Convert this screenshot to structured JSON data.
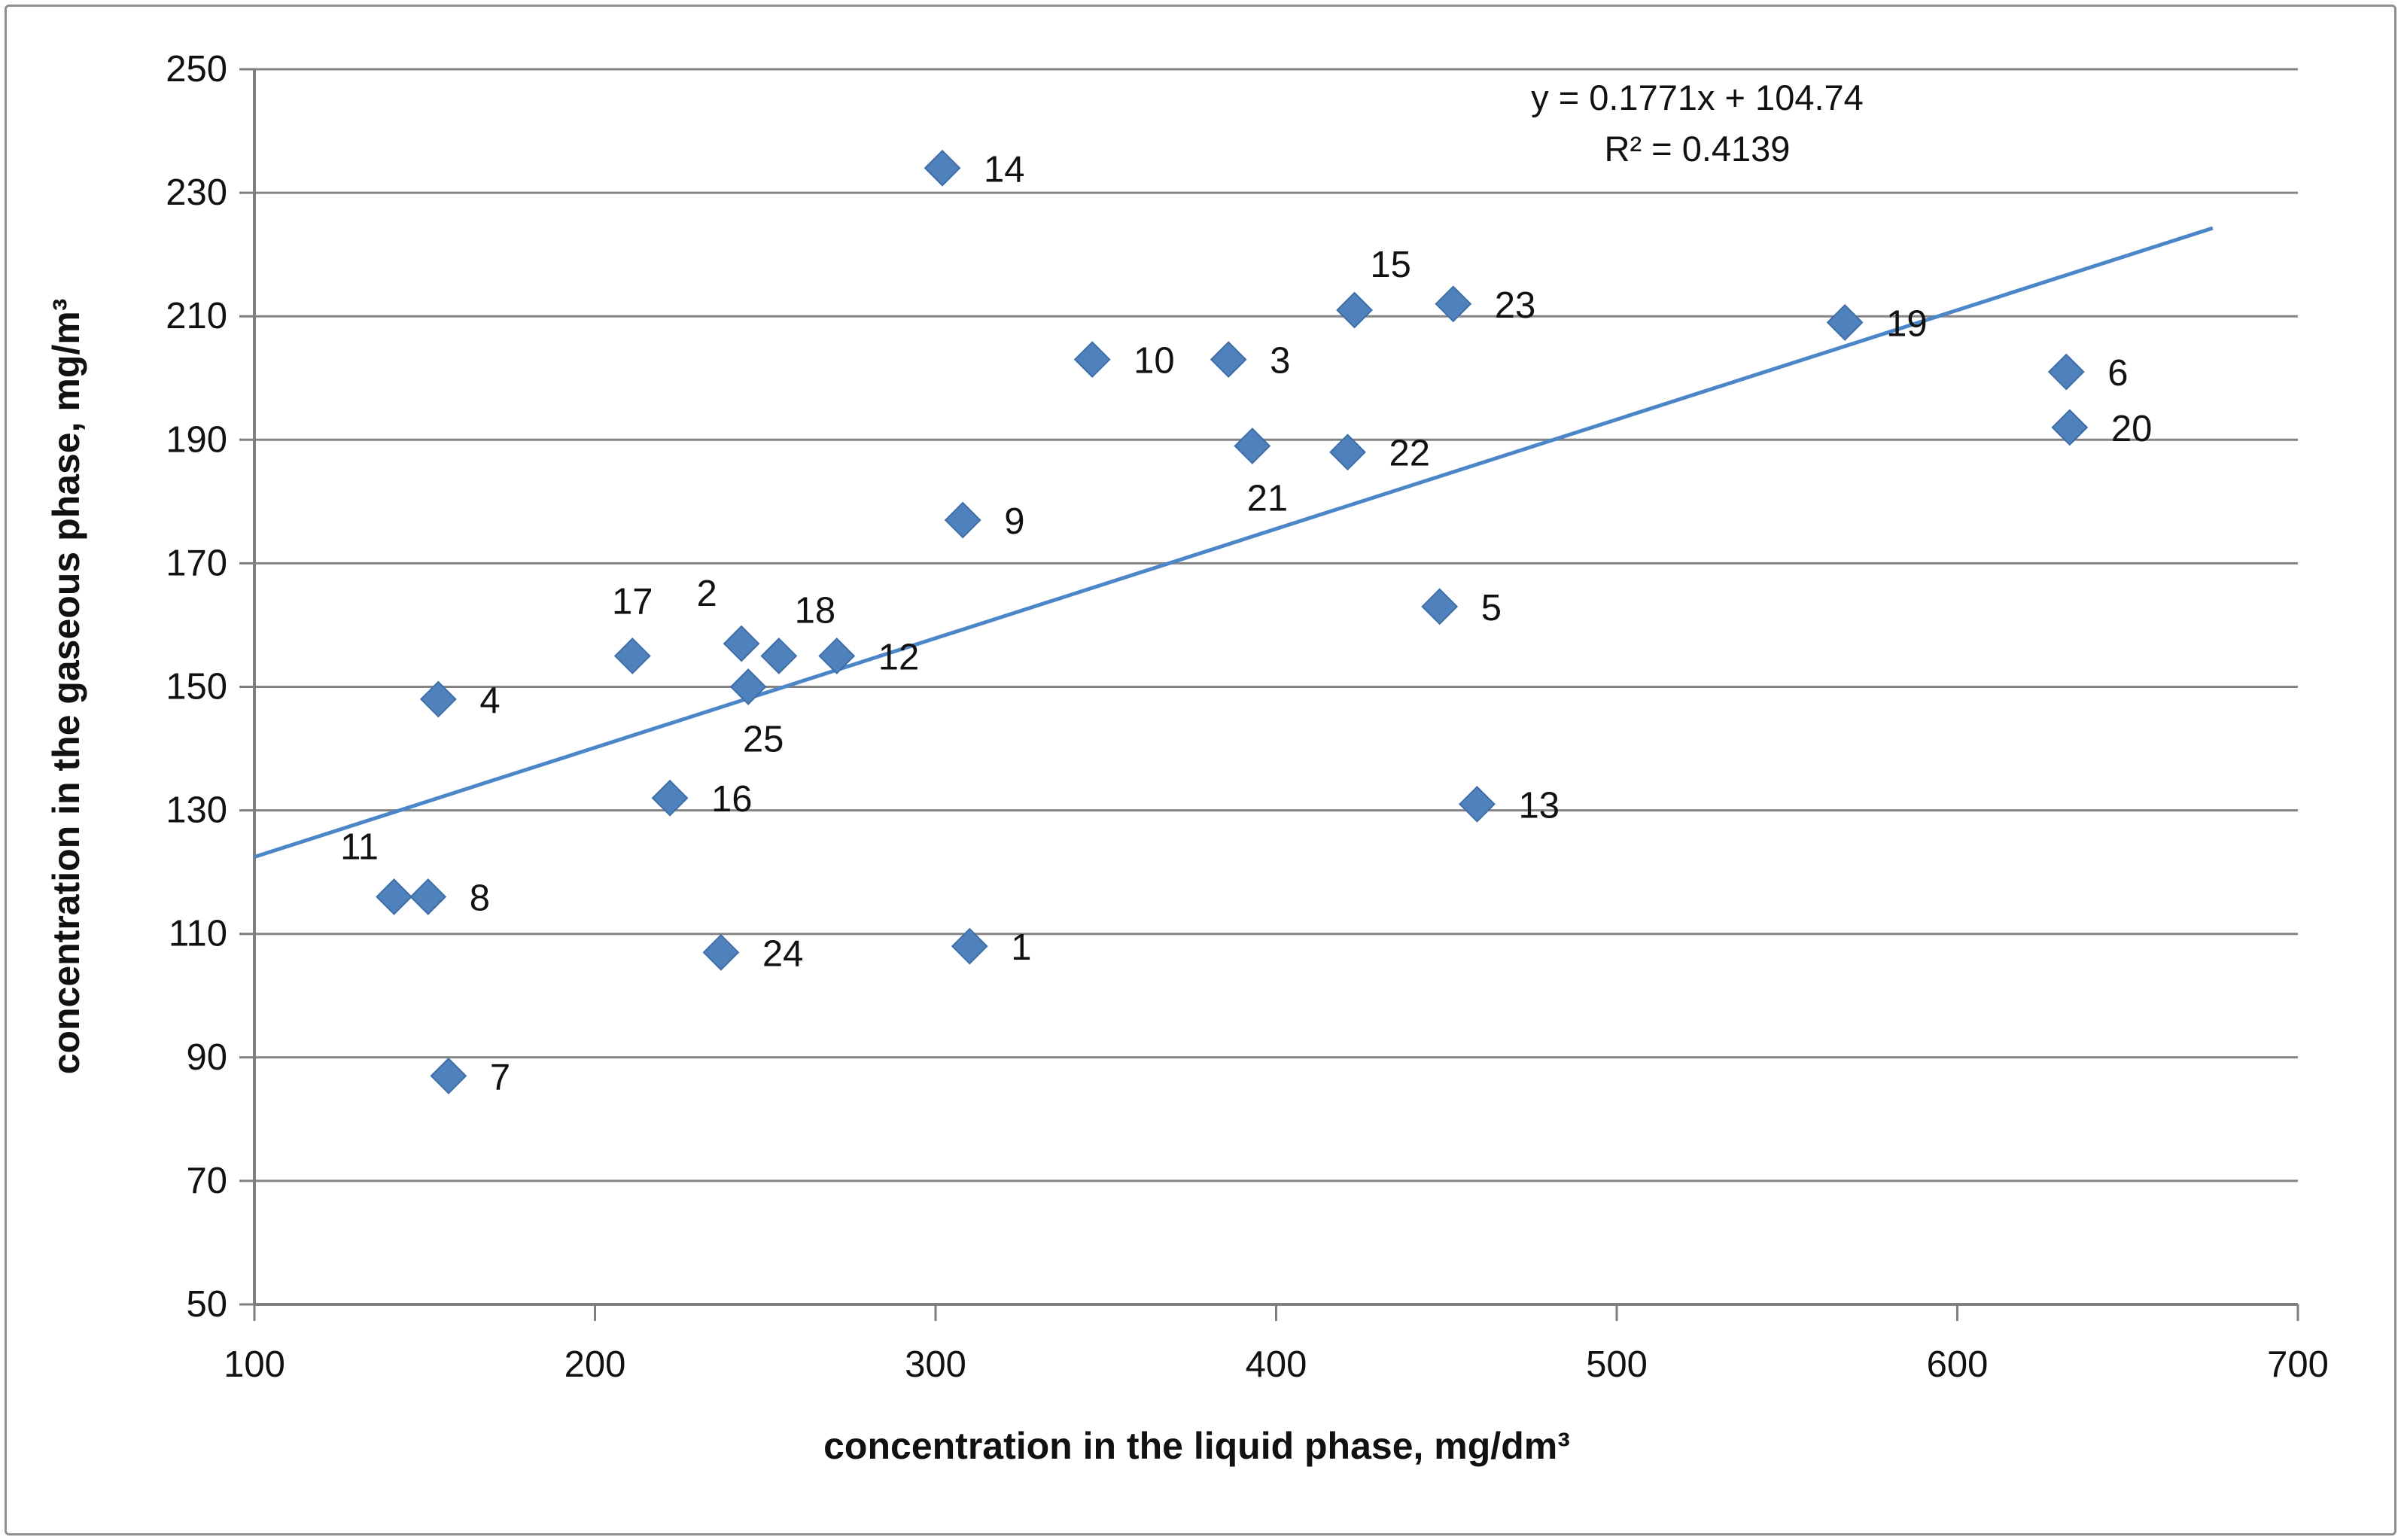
{
  "chart_data": {
    "type": "scatter",
    "title": "",
    "xlabel": "concentration in the liquid phase, mg/dm³",
    "ylabel": "concentration in the gaseous phase, mg/m³",
    "xlim": [
      100,
      700
    ],
    "ylim": [
      50,
      250
    ],
    "x_ticks": [
      "100",
      "200",
      "300",
      "400",
      "500",
      "600",
      "700"
    ],
    "y_ticks": [
      "50",
      "70",
      "90",
      "110",
      "130",
      "150",
      "170",
      "190",
      "210",
      "230",
      "250"
    ],
    "grid": "horizontal-only",
    "legend": "none",
    "colors": {
      "marker": "#4f81bd",
      "marker_edge": "#3f6fa8",
      "trend_line": "#4a86c8",
      "gridline": "#848484",
      "axis_line": "#7f7f7f",
      "text": "#111111"
    },
    "equation_line1": "y = 0.1771x + 104.74",
    "equation_line2": "R² = 0.4139",
    "trendline": {
      "slope": 0.1771,
      "intercept": 104.74,
      "x_start": 100,
      "x_end": 675
    },
    "points": [
      {
        "label": "1",
        "x": 310,
        "y": 108,
        "label_pos": "right"
      },
      {
        "label": "2",
        "x": 243,
        "y": 157,
        "label_pos": "above-left"
      },
      {
        "label": "3",
        "x": 386,
        "y": 203,
        "label_pos": "right"
      },
      {
        "label": "4",
        "x": 154,
        "y": 148,
        "label_pos": "right"
      },
      {
        "label": "5",
        "x": 448,
        "y": 163,
        "label_pos": "right"
      },
      {
        "label": "6",
        "x": 632,
        "y": 201,
        "label_pos": "right"
      },
      {
        "label": "7",
        "x": 157,
        "y": 87,
        "label_pos": "right"
      },
      {
        "label": "8",
        "x": 151,
        "y": 116,
        "label_pos": "right"
      },
      {
        "label": "9",
        "x": 308,
        "y": 177,
        "label_pos": "right"
      },
      {
        "label": "10",
        "x": 346,
        "y": 203,
        "label_pos": "right"
      },
      {
        "label": "11",
        "x": 141,
        "y": 116,
        "label_pos": "above-left"
      },
      {
        "label": "12",
        "x": 271,
        "y": 155,
        "label_pos": "right"
      },
      {
        "label": "13",
        "x": 459,
        "y": 131,
        "label_pos": "right"
      },
      {
        "label": "14",
        "x": 302,
        "y": 234,
        "label_pos": "right"
      },
      {
        "label": "15",
        "x": 423,
        "y": 211,
        "label_pos": "above-right"
      },
      {
        "label": "16",
        "x": 222,
        "y": 132,
        "label_pos": "right"
      },
      {
        "label": "17",
        "x": 211,
        "y": 155,
        "label_pos": "above"
      },
      {
        "label": "18",
        "x": 254,
        "y": 155,
        "label_pos": "above-right"
      },
      {
        "label": "19",
        "x": 567,
        "y": 209,
        "label_pos": "right"
      },
      {
        "label": "20",
        "x": 633,
        "y": 192,
        "label_pos": "right"
      },
      {
        "label": "21",
        "x": 393,
        "y": 189,
        "label_pos": "below"
      },
      {
        "label": "22",
        "x": 421,
        "y": 188,
        "label_pos": "right"
      },
      {
        "label": "23",
        "x": 452,
        "y": 212,
        "label_pos": "right"
      },
      {
        "label": "24",
        "x": 237,
        "y": 107,
        "label_pos": "right"
      },
      {
        "label": "25",
        "x": 245,
        "y": 150,
        "label_pos": "below"
      }
    ]
  }
}
